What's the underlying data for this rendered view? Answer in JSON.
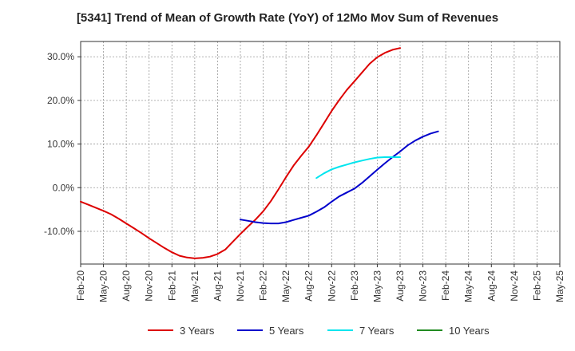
{
  "chart_data": {
    "type": "line",
    "title": "[5341]  Trend of Mean of Growth Rate (YoY) of 12Mo Mov Sum of Revenues",
    "xlabel": "",
    "ylabel": "",
    "x_tick_labels": [
      "Feb-20",
      "May-20",
      "Aug-20",
      "Nov-20",
      "Feb-21",
      "May-21",
      "Aug-21",
      "Nov-21",
      "Feb-22",
      "May-22",
      "Aug-22",
      "Nov-22",
      "Feb-23",
      "May-23",
      "Aug-23",
      "Nov-23",
      "Feb-24",
      "May-24",
      "Aug-24",
      "Nov-24",
      "Feb-25",
      "May-25"
    ],
    "y_ticks": [
      -10,
      0,
      10,
      20,
      30
    ],
    "y_tick_labels": [
      "-10.0%",
      "0.0%",
      "10.0%",
      "20.0%",
      "30.0%"
    ],
    "ylim": [
      -17.5,
      33.5
    ],
    "grid": true,
    "legend_position": "bottom",
    "series": [
      {
        "name": "3 Years",
        "color": "#dd0000",
        "start_index": 0,
        "values": [
          -3.2,
          -3.9,
          -4.6,
          -5.3,
          -6.1,
          -7.1,
          -8.2,
          -9.3,
          -10.4,
          -11.6,
          -12.7,
          -13.8,
          -14.8,
          -15.6,
          -16.0,
          -16.2,
          -16.1,
          -15.8,
          -15.2,
          -14.2,
          -12.4,
          -10.6,
          -8.9,
          -7.3,
          -5.4,
          -3.1,
          -0.4,
          2.4,
          5.1,
          7.3,
          9.4,
          12.0,
          14.8,
          17.6,
          20.1,
          22.4,
          24.4,
          26.4,
          28.4,
          29.9,
          30.9,
          31.6,
          32.0
        ]
      },
      {
        "name": "5 Years",
        "color": "#0000cc",
        "start_index": 21,
        "values": [
          -7.3,
          -7.6,
          -7.9,
          -8.1,
          -8.2,
          -8.2,
          -7.9,
          -7.4,
          -6.9,
          -6.4,
          -5.5,
          -4.5,
          -3.2,
          -2.0,
          -1.1,
          -0.2,
          1.1,
          2.6,
          4.1,
          5.6,
          7.0,
          8.3,
          9.7,
          10.8,
          11.7,
          12.4,
          12.9
        ]
      },
      {
        "name": "7 Years",
        "color": "#00e5ee",
        "start_index": 31,
        "values": [
          2.2,
          3.3,
          4.2,
          4.8,
          5.3,
          5.8,
          6.2,
          6.6,
          6.9,
          7.0,
          7.0,
          7.0
        ]
      },
      {
        "name": "10 Years",
        "color": "#228b22",
        "start_index": 0,
        "values": []
      }
    ]
  }
}
